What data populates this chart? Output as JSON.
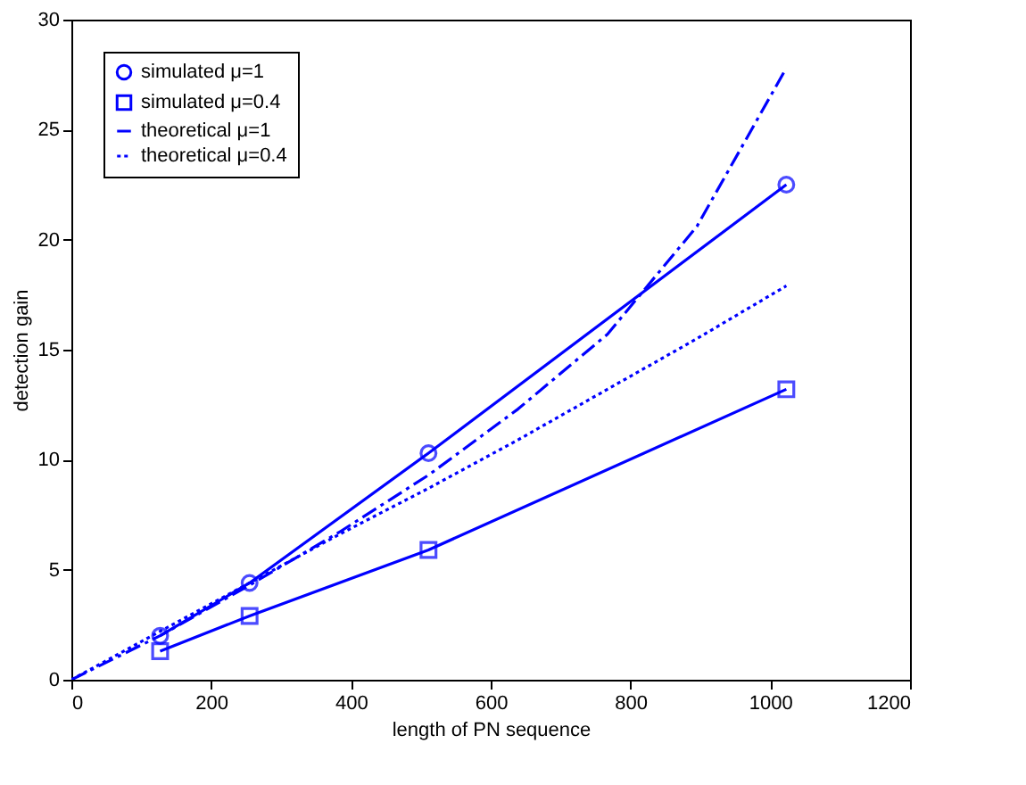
{
  "chart_data": {
    "type": "line",
    "xlabel": "length of PN sequence",
    "ylabel": "detection gain",
    "xlim": [
      0,
      1200
    ],
    "xticks": [
      0,
      200,
      400,
      600,
      800,
      1000,
      1200
    ],
    "ylim": [
      0,
      30
    ],
    "yticks": [
      0,
      5,
      10,
      15,
      20,
      25,
      30
    ],
    "grid": false,
    "legend": "top left",
    "series": [
      {
        "name": "simulated  μ=1",
        "color": "#0000ff",
        "x": [
          127,
          255,
          511,
          1023
        ],
        "values": [
          2.0,
          4.4,
          10.3,
          22.5
        ],
        "marker": "circle",
        "line_style": "solid"
      },
      {
        "name": "simulated  μ=0.4",
        "color": "#0000ff",
        "x": [
          127,
          255,
          511,
          1023
        ],
        "values": [
          1.3,
          2.9,
          5.9,
          13.2
        ],
        "marker": "square",
        "line_style": "solid"
      },
      {
        "name": "theoretical μ=1",
        "color": "#0000ff",
        "x": [
          0,
          127,
          255,
          383,
          511,
          639,
          767,
          895,
          1023
        ],
        "values": [
          0,
          2.0,
          4.3,
          6.7,
          9.3,
          12.3,
          15.7,
          20.6,
          27.8
        ],
        "marker": "none",
        "line_style": "dashed"
      },
      {
        "name": "theoretical μ=0.4",
        "color": "#0000ff",
        "x": [
          0,
          127,
          255,
          383,
          511,
          639,
          767,
          895,
          1023
        ],
        "values": [
          0,
          2.2,
          4.4,
          6.6,
          8.7,
          10.9,
          13.2,
          15.5,
          17.9
        ],
        "marker": "none",
        "line_style": "dotted"
      }
    ]
  }
}
